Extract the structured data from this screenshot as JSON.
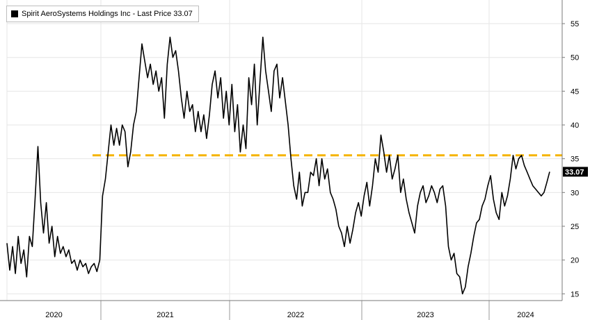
{
  "chart_data": {
    "type": "line",
    "title": "",
    "legend": {
      "label": "Spirit AeroSystems Holdings Inc - Last Price 33.07",
      "placement": "top-left"
    },
    "last_price": "33.07",
    "ylim": [
      14,
      58.5
    ],
    "yticks": [
      15,
      20,
      25,
      30,
      35,
      40,
      45,
      50,
      55
    ],
    "x_year_labels": [
      "2020",
      "2021",
      "2022",
      "2023",
      "2024"
    ],
    "reference_line": {
      "value": 35.5,
      "color": "#f5b400",
      "style": "dashed"
    },
    "grid": true,
    "colors": {
      "line": "#000000",
      "price_tag": "#000000"
    },
    "series": [
      {
        "values": [
          22.5,
          18.5,
          22.0,
          18.0,
          23.5,
          19.5,
          21.5,
          17.5,
          23.5,
          22.0,
          29.0,
          36.8,
          28.5,
          24.0,
          28.5,
          22.5,
          25.0,
          20.5,
          23.5,
          21.0,
          22.0,
          20.5,
          21.5,
          19.5,
          20.0,
          18.5,
          20.0,
          19.0,
          19.5,
          18.0,
          19.0,
          19.5,
          18.3,
          20.0,
          29.5,
          32.0,
          36.0,
          40.0,
          37.0,
          39.5,
          37.0,
          40.0,
          39.0,
          33.8,
          36.0,
          40.0,
          42.0,
          47.0,
          52.0,
          49.5,
          47.0,
          49.0,
          46.0,
          48.0,
          45.0,
          47.0,
          41.0,
          49.0,
          53.0,
          50.0,
          51.0,
          48.0,
          44.0,
          41.0,
          45.0,
          42.0,
          43.0,
          39.0,
          42.0,
          39.0,
          41.5,
          38.0,
          41.5,
          46.0,
          48.0,
          44.0,
          47.0,
          41.0,
          45.0,
          40.0,
          46.0,
          39.0,
          43.0,
          36.0,
          40.0,
          36.5,
          47.0,
          43.0,
          49.0,
          40.0,
          46.5,
          53.0,
          48.0,
          45.0,
          42.0,
          48.0,
          49.0,
          44.0,
          47.0,
          43.5,
          40.0,
          35.0,
          31.0,
          29.0,
          33.0,
          28.0,
          30.0,
          30.0,
          33.0,
          32.5,
          35.0,
          31.0,
          35.0,
          32.0,
          33.5,
          30.0,
          29.0,
          27.5,
          25.0,
          24.0,
          22.0,
          25.0,
          22.5,
          24.5,
          27.0,
          28.5,
          26.5,
          29.5,
          31.5,
          28.0,
          31.0,
          35.0,
          33.0,
          38.5,
          36.0,
          33.0,
          35.5,
          32.0,
          33.5,
          35.5,
          30.0,
          32.0,
          29.0,
          27.0,
          25.5,
          24.0,
          28.0,
          30.0,
          31.0,
          28.5,
          29.5,
          31.0,
          30.0,
          28.5,
          30.5,
          31.0,
          28.0,
          22.0,
          20.0,
          21.0,
          18.0,
          17.5,
          15.0,
          16.0,
          19.0,
          21.0,
          23.5,
          25.5,
          26.0,
          28.0,
          29.0,
          31.0,
          32.5,
          29.0,
          27.0,
          26.0,
          30.0,
          28.0,
          29.5,
          32.0,
          35.5,
          33.5,
          35.0,
          35.5,
          34.0,
          33.0,
          32.0,
          31.0,
          30.5,
          30.0,
          29.5,
          30.0,
          31.5,
          33.07
        ]
      }
    ]
  }
}
